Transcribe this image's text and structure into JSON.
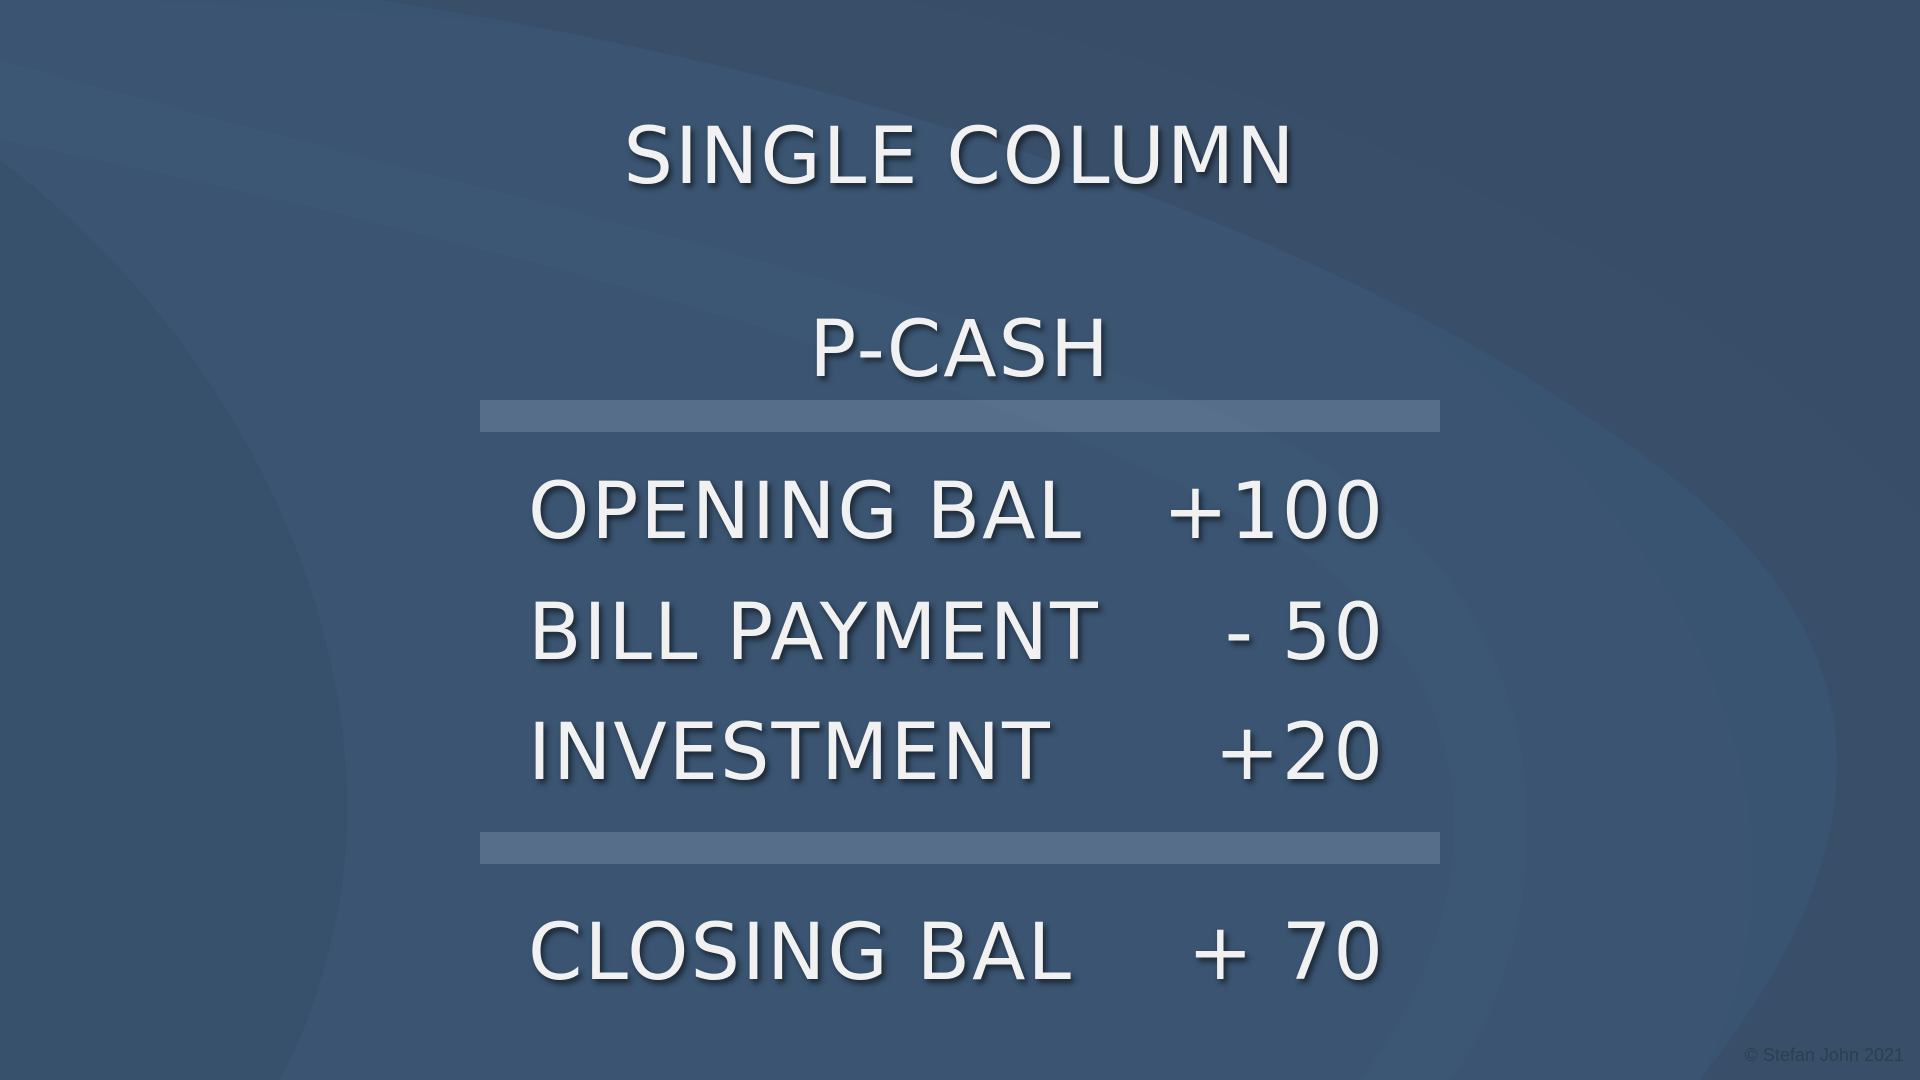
{
  "slide": {
    "title": "SINGLE COLUMN",
    "account_name": "P-CASH",
    "entries": [
      {
        "label": "OPENING BAL",
        "value": "+100"
      },
      {
        "label": "BILL PAYMENT",
        "value": "- 50"
      },
      {
        "label": "INVESTMENT",
        "value": "+20"
      }
    ],
    "closing": {
      "label": "CLOSING BAL",
      "value": "+ 70"
    },
    "copyright": "© Stefan John 2021"
  },
  "colors": {
    "background": "#3b5672",
    "background_dark": "#37506a",
    "text": "#f1f1f1",
    "divider": "#56708c"
  }
}
